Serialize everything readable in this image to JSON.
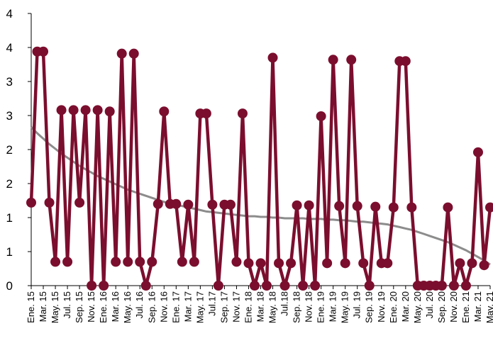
{
  "chart_data": {
    "type": "line",
    "title": "",
    "xlabel": "",
    "ylabel": "",
    "ylim": [
      0,
      4
    ],
    "y_tick_labels": [
      "0",
      "1",
      "1",
      "2",
      "2",
      "3",
      "3",
      "4",
      "4"
    ],
    "x": [
      "Ene. 15",
      "Feb. 15",
      "Mar. 15",
      "Abr. 15",
      "May. 15",
      "Jun. 15",
      "Jul. 15",
      "Ago. 15",
      "Sep. 15",
      "Oct. 15",
      "Nov. 15",
      "Dic. 15",
      "Ene. 16",
      "Feb. 16",
      "Mar. 16",
      "Abr. 16",
      "May. 16",
      "Jun. 16",
      "Jul. 16",
      "Ago. 16",
      "Sep. 16",
      "Oct. 16",
      "Nov. 16",
      "Dic. 16",
      "Ene. 17",
      "Feb. 17",
      "Mar. 17",
      "Abr. 17",
      "May. 17",
      "Jun. 17",
      "Jul. 17",
      "Ago. 17",
      "Sep. 17",
      "Oct. 17",
      "Nov. 17",
      "Dic. 17",
      "Ene. 18",
      "Feb. 18",
      "Mar. 18",
      "Abr. 18",
      "May. 18",
      "Jun. 18",
      "Jul. 18",
      "Ago. 18",
      "Sep. 18",
      "Oct. 18",
      "Nov. 18",
      "Dic. 18",
      "Ene. 19",
      "Feb. 19",
      "Mar. 19",
      "Abr. 19",
      "May. 19",
      "Jun. 19",
      "Jul. 19",
      "Ago. 19",
      "Sep. 19",
      "Oct. 19",
      "Nov. 19",
      "Dic. 19",
      "Ene. 20",
      "Feb. 20",
      "Mar. 20",
      "Abr. 20",
      "May. 20",
      "Jun. 20",
      "Jul. 20",
      "Ago. 20",
      "Sep. 20",
      "Oct. 20",
      "Nov. 20",
      "Dic. 20",
      "Ene. 21",
      "Feb. 21",
      "Mar. 21",
      "Abr. 21",
      "May. 21"
    ],
    "x_tick_labels": [
      "Ene. 15",
      "Mar. 15",
      "May. 15",
      "Jul. 15",
      "Sep. 15",
      "Nov. 15",
      "Ene. 16",
      "Mar. 16",
      "May. 16",
      "Jul. 16",
      "Sep. 16",
      "Nov. 16",
      "Ene. 17",
      "Mar. 17",
      "May. 17",
      "Jul.17",
      "Sep. 17",
      "Nov. 17",
      "Ene. 18",
      "Mar. 18",
      "May. 18",
      "Jul.18",
      "Sep. 18",
      "Nov. 18",
      "Ene. 19",
      "Mar. 19",
      "May. 19",
      "Jul. 19",
      "Sep. 19",
      "Nov. 19",
      "Ene. 20",
      "Mar. 20",
      "May. 20",
      "Jul. 20",
      "Sep. 20",
      "Nov. 20",
      "Ene. 21",
      "Mar. 21",
      "May. 21"
    ],
    "series": [
      {
        "style": "line-with-markers",
        "color": "#7b0e2e",
        "values": [
          1.22,
          3.44,
          3.44,
          1.22,
          0.35,
          2.58,
          0.35,
          2.58,
          1.22,
          2.58,
          0.0,
          2.58,
          0.0,
          2.56,
          0.35,
          3.41,
          0.35,
          3.41,
          0.35,
          0.0,
          0.35,
          1.2,
          2.56,
          1.2,
          1.2,
          0.35,
          1.19,
          0.35,
          2.53,
          2.53,
          1.19,
          0.0,
          1.19,
          1.19,
          0.35,
          2.53,
          0.33,
          0.0,
          0.33,
          0.0,
          3.35,
          0.33,
          0.0,
          0.33,
          1.18,
          0.0,
          1.18,
          0.0,
          2.49,
          0.33,
          3.32,
          1.17,
          0.33,
          3.32,
          1.17,
          0.33,
          0.0,
          1.16,
          0.33,
          0.33,
          1.15,
          3.3,
          3.3,
          1.15,
          0.0,
          0.0,
          0.0,
          0.0,
          0.0,
          1.15,
          0.0,
          0.33,
          0.0,
          0.33,
          1.96,
          0.3,
          1.15
        ]
      },
      {
        "name": "",
        "style": "trendline",
        "color": "#8c8c8c",
        "values": [
          2.33,
          2.24,
          2.16,
          2.08,
          2.01,
          1.94,
          1.88,
          1.82,
          1.76,
          1.71,
          1.66,
          1.61,
          1.57,
          1.53,
          1.49,
          1.45,
          1.41,
          1.38,
          1.35,
          1.32,
          1.29,
          1.26,
          1.23,
          1.21,
          1.19,
          1.17,
          1.15,
          1.13,
          1.11,
          1.09,
          1.08,
          1.07,
          1.06,
          1.05,
          1.04,
          1.03,
          1.02,
          1.02,
          1.01,
          1.01,
          1.0,
          1.0,
          0.99,
          0.99,
          0.99,
          0.99,
          0.98,
          0.98,
          0.98,
          0.97,
          0.97,
          0.96,
          0.96,
          0.95,
          0.94,
          0.94,
          0.93,
          0.92,
          0.91,
          0.9,
          0.88,
          0.86,
          0.84,
          0.82,
          0.79,
          0.76,
          0.73,
          0.7,
          0.67,
          0.64,
          0.6,
          0.56,
          0.52,
          0.47,
          0.42,
          0.37,
          0.31
        ]
      }
    ],
    "grid": false,
    "legend": "none"
  }
}
